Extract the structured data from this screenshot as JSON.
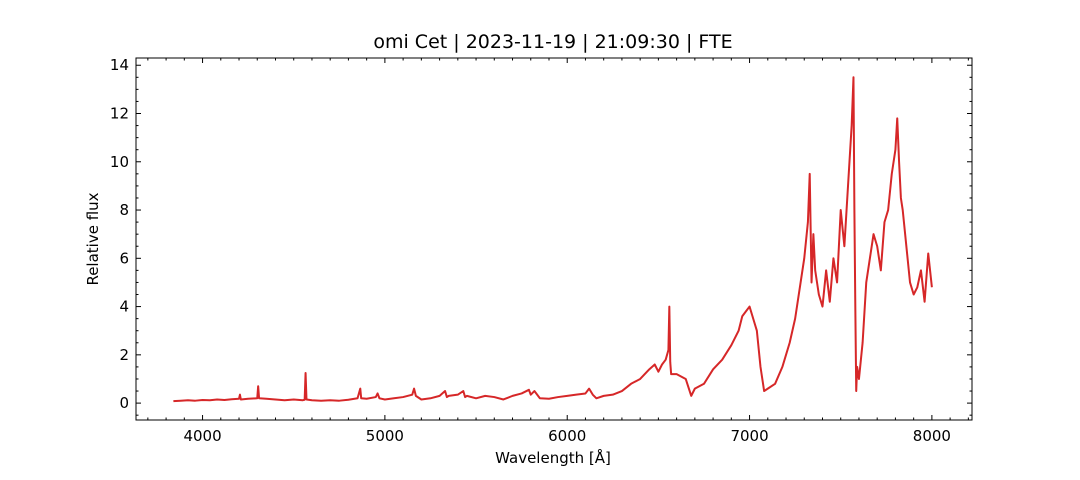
{
  "chart_data": {
    "type": "line",
    "title": "omi Cet | 2023-11-19 | 21:09:30 | FTE",
    "xlabel": "Wavelength [Å]",
    "ylabel": "Relative flux",
    "xlim": [
      3635,
      8220
    ],
    "ylim": [
      -0.7,
      14.3
    ],
    "xticks": [
      4000,
      5000,
      6000,
      7000,
      8000
    ],
    "yticks": [
      0,
      2,
      4,
      6,
      8,
      10,
      12,
      14
    ],
    "grid": false,
    "legend": "none",
    "series": [
      {
        "color": "#d62728",
        "x": [
          3840,
          3880,
          3920,
          3960,
          4000,
          4040,
          4080,
          4120,
          4160,
          4200,
          4205,
          4210,
          4250,
          4300,
          4305,
          4310,
          4350,
          4400,
          4450,
          4500,
          4550,
          4560,
          4565,
          4570,
          4600,
          4650,
          4700,
          4750,
          4800,
          4850,
          4865,
          4870,
          4900,
          4950,
          4960,
          4970,
          5000,
          5050,
          5100,
          5150,
          5160,
          5170,
          5200,
          5250,
          5300,
          5330,
          5340,
          5350,
          5400,
          5430,
          5440,
          5450,
          5500,
          5550,
          5600,
          5650,
          5700,
          5750,
          5790,
          5800,
          5820,
          5850,
          5900,
          5950,
          6000,
          6050,
          6100,
          6120,
          6140,
          6160,
          6200,
          6250,
          6300,
          6350,
          6400,
          6450,
          6480,
          6500,
          6520,
          6540,
          6555,
          6560,
          6565,
          6570,
          6600,
          6650,
          6680,
          6700,
          6750,
          6800,
          6850,
          6900,
          6940,
          6960,
          6980,
          7000,
          7020,
          7040,
          7060,
          7080,
          7100,
          7140,
          7180,
          7200,
          7220,
          7250,
          7280,
          7300,
          7320,
          7330,
          7340,
          7350,
          7360,
          7380,
          7400,
          7420,
          7440,
          7460,
          7480,
          7500,
          7520,
          7540,
          7560,
          7570,
          7575,
          7580,
          7585,
          7590,
          7600,
          7620,
          7640,
          7660,
          7680,
          7700,
          7720,
          7740,
          7760,
          7780,
          7800,
          7810,
          7820,
          7830,
          7840,
          7860,
          7880,
          7900,
          7920,
          7940,
          7960,
          7980,
          8000
        ],
        "y": [
          0.08,
          0.1,
          0.12,
          0.1,
          0.13,
          0.12,
          0.15,
          0.13,
          0.16,
          0.18,
          0.35,
          0.15,
          0.18,
          0.2,
          0.7,
          0.2,
          0.18,
          0.15,
          0.12,
          0.15,
          0.12,
          0.14,
          1.25,
          0.15,
          0.12,
          0.1,
          0.12,
          0.1,
          0.14,
          0.2,
          0.6,
          0.2,
          0.18,
          0.25,
          0.4,
          0.2,
          0.15,
          0.2,
          0.25,
          0.35,
          0.6,
          0.3,
          0.15,
          0.2,
          0.3,
          0.5,
          0.25,
          0.3,
          0.35,
          0.5,
          0.25,
          0.3,
          0.2,
          0.3,
          0.25,
          0.15,
          0.3,
          0.4,
          0.55,
          0.35,
          0.5,
          0.2,
          0.18,
          0.25,
          0.3,
          0.35,
          0.4,
          0.6,
          0.35,
          0.2,
          0.3,
          0.35,
          0.5,
          0.8,
          1.0,
          1.4,
          1.6,
          1.3,
          1.6,
          1.8,
          2.2,
          4.0,
          1.7,
          1.2,
          1.2,
          1.0,
          0.3,
          0.6,
          0.8,
          1.4,
          1.8,
          2.4,
          3.0,
          3.6,
          3.8,
          4.0,
          3.5,
          3.0,
          1.5,
          0.5,
          0.6,
          0.8,
          1.5,
          2.0,
          2.5,
          3.5,
          5.0,
          6.0,
          7.5,
          9.5,
          5.0,
          7.0,
          5.5,
          4.5,
          4.0,
          5.5,
          4.2,
          6.0,
          5.0,
          8.0,
          6.5,
          9.0,
          11.5,
          13.5,
          8.0,
          4.0,
          0.5,
          1.5,
          1.0,
          2.5,
          5.0,
          6.0,
          7.0,
          6.5,
          5.5,
          7.5,
          8.0,
          9.5,
          10.5,
          11.8,
          10.0,
          8.5,
          8.0,
          6.5,
          5.0,
          4.5,
          4.8,
          5.5,
          4.2,
          6.2,
          4.8
        ]
      }
    ]
  }
}
